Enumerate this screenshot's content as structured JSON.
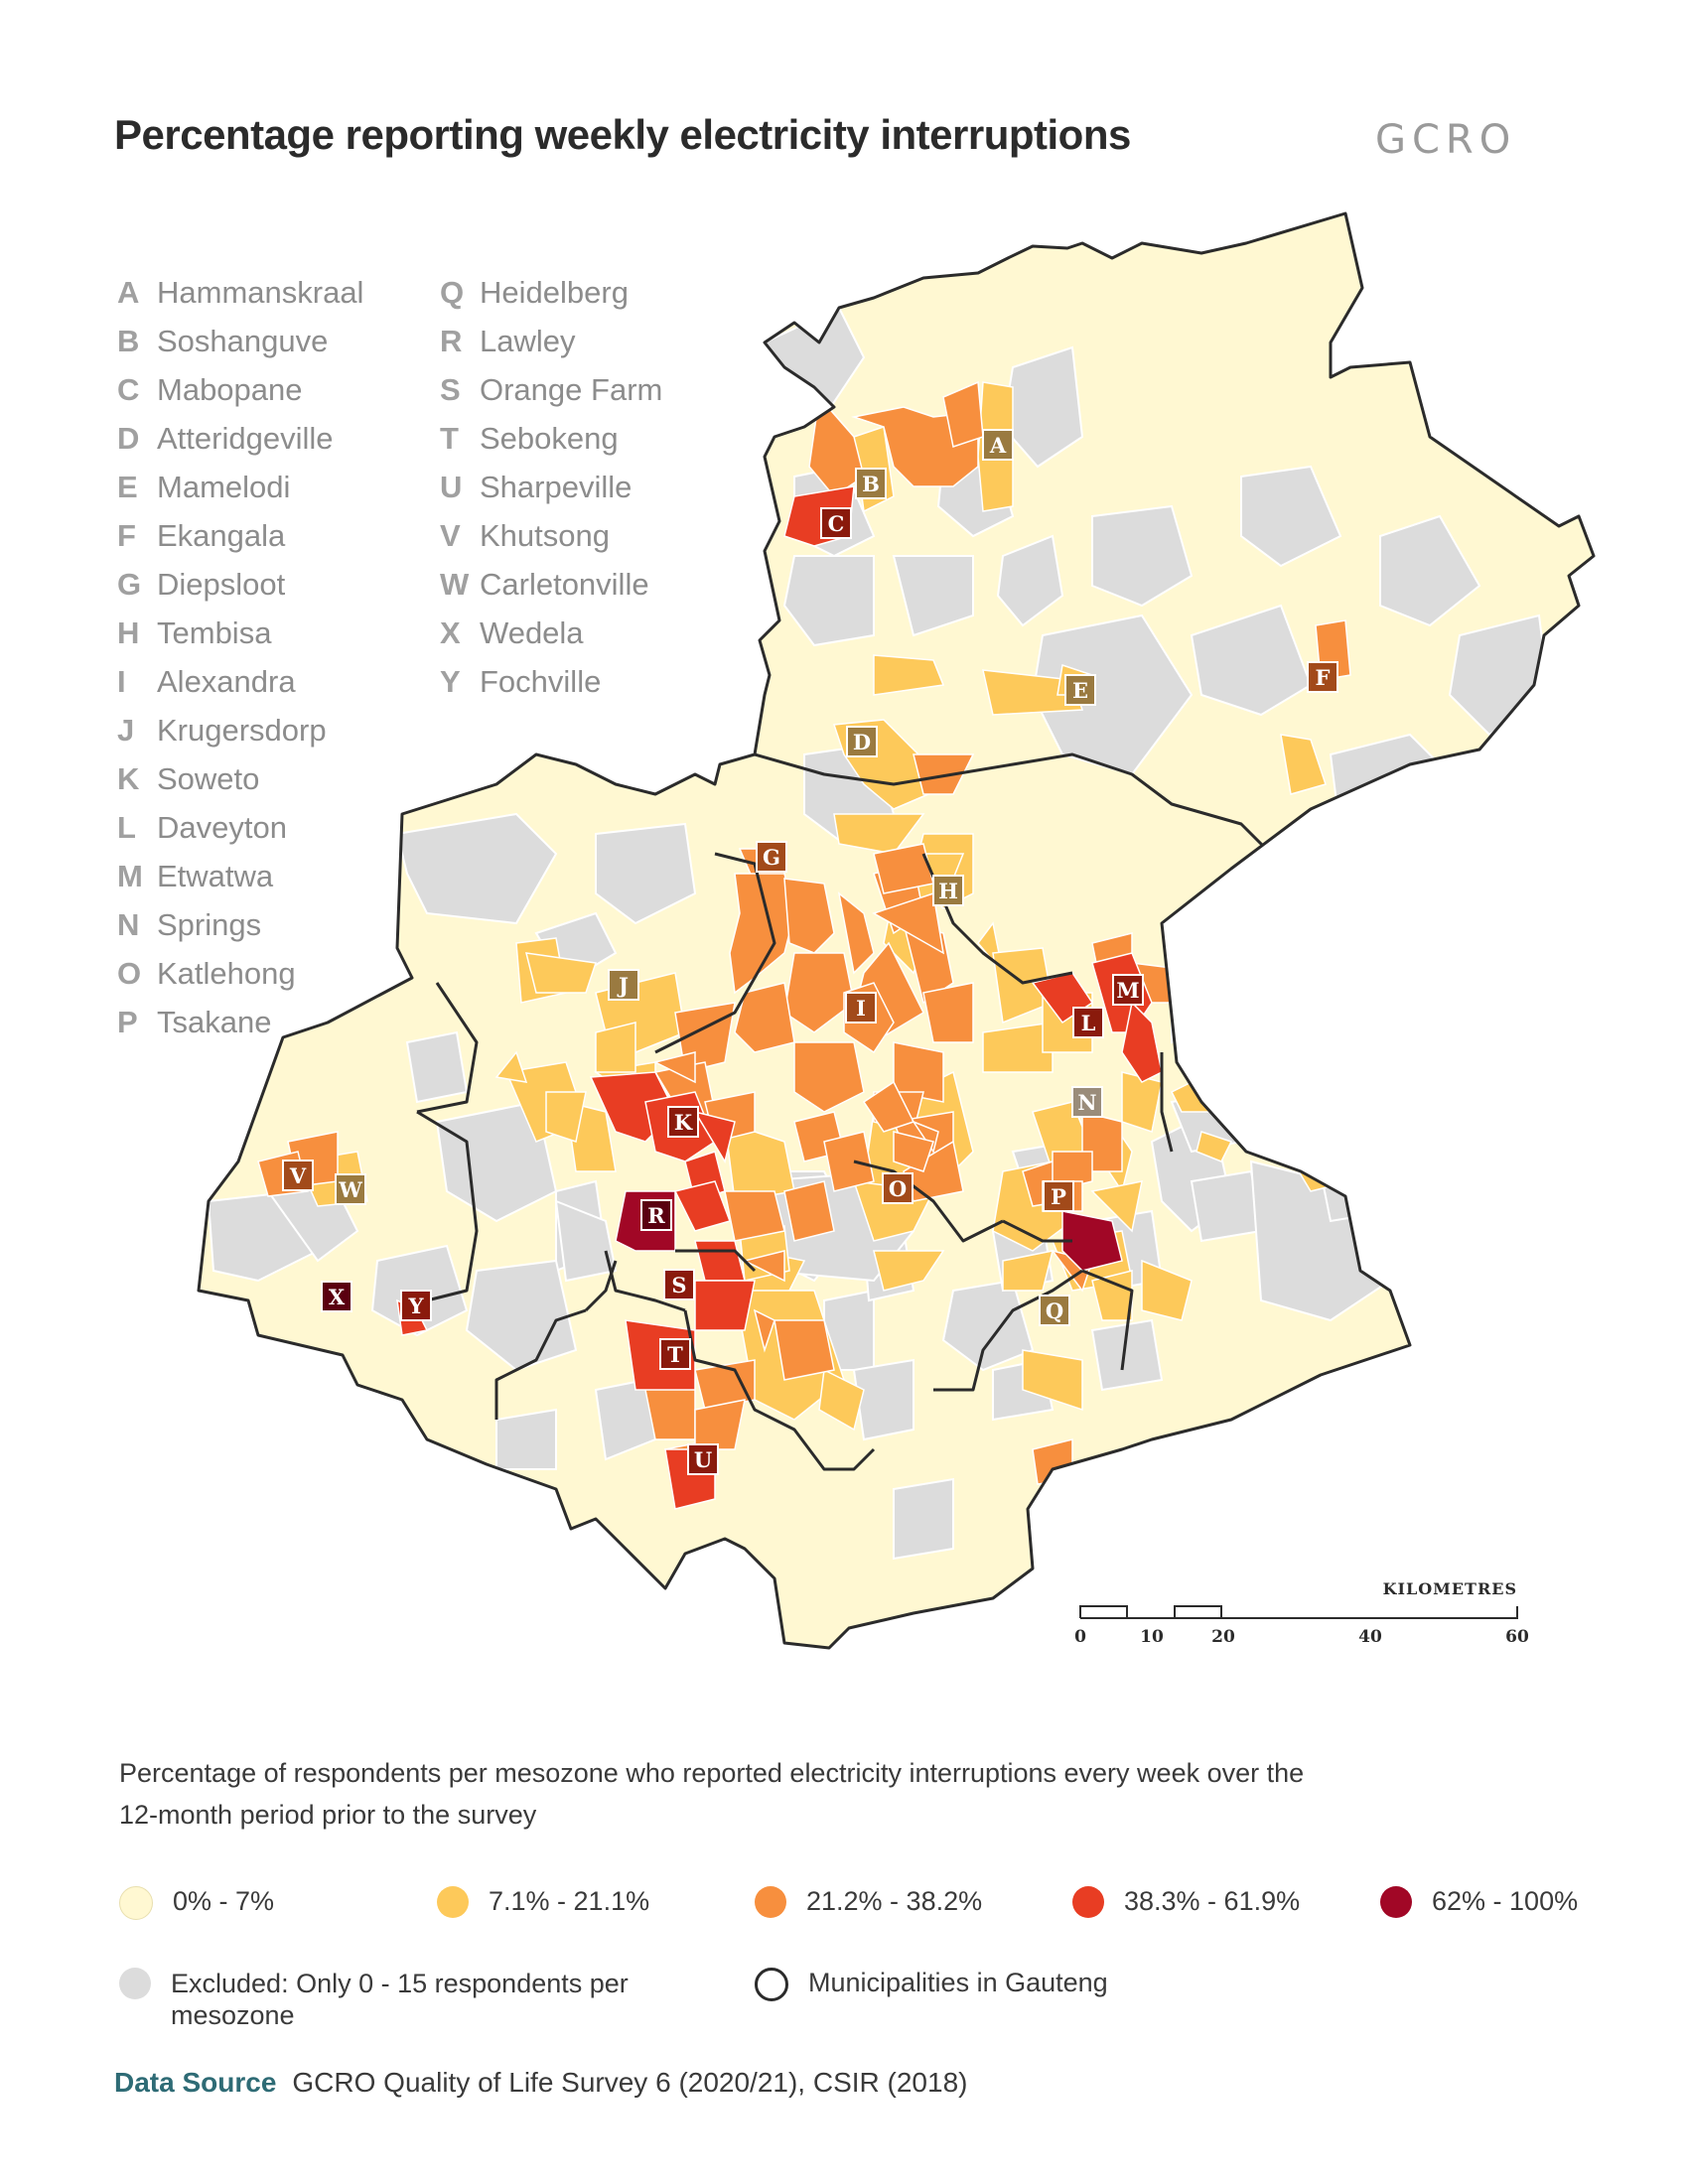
{
  "title": "Percentage reporting weekly electricity interruptions",
  "logo_text": "GCRO",
  "places_left": [
    {
      "letter": "A",
      "name": "Hammanskraal"
    },
    {
      "letter": "B",
      "name": "Soshanguve"
    },
    {
      "letter": "C",
      "name": "Mabopane"
    },
    {
      "letter": "D",
      "name": "Atteridgeville"
    },
    {
      "letter": "E",
      "name": "Mamelodi"
    },
    {
      "letter": "F",
      "name": "Ekangala"
    },
    {
      "letter": "G",
      "name": "Diepsloot"
    },
    {
      "letter": "H",
      "name": "Tembisa"
    },
    {
      "letter": "I",
      "name": "Alexandra"
    },
    {
      "letter": "J",
      "name": "Krugersdorp"
    },
    {
      "letter": "K",
      "name": "Soweto"
    },
    {
      "letter": "L",
      "name": "Daveyton"
    },
    {
      "letter": "M",
      "name": "Etwatwa"
    },
    {
      "letter": "N",
      "name": "Springs"
    },
    {
      "letter": "O",
      "name": "Katlehong"
    },
    {
      "letter": "P",
      "name": "Tsakane"
    }
  ],
  "places_right": [
    {
      "letter": "Q",
      "name": "Heidelberg"
    },
    {
      "letter": "R",
      "name": "Lawley"
    },
    {
      "letter": "S",
      "name": "Orange Farm"
    },
    {
      "letter": "T",
      "name": "Sebokeng"
    },
    {
      "letter": "U",
      "name": "Sharpeville"
    },
    {
      "letter": "V",
      "name": "Khutsong"
    },
    {
      "letter": "W",
      "name": "Carletonville"
    },
    {
      "letter": "X",
      "name": "Wedela"
    },
    {
      "letter": "Y",
      "name": "Fochville"
    }
  ],
  "scale": {
    "label": "KILOMETRES",
    "ticks": [
      "0",
      "10",
      "20",
      "40",
      "60"
    ]
  },
  "legend": {
    "description": "Percentage of respondents per mesozone who reported electricity interruptions every week over the 12-month period prior to the survey",
    "classes": [
      {
        "label": "0% - 7%",
        "color": "#fff8d2"
      },
      {
        "label": "7.1% - 21.1%",
        "color": "#fdc95a"
      },
      {
        "label": "21.2% - 38.2%",
        "color": "#f78f3e"
      },
      {
        "label": "38.3% - 61.9%",
        "color": "#e83d23"
      },
      {
        "label": "62% - 100%",
        "color": "#a10726"
      }
    ],
    "excluded": {
      "label": "Excluded: Only 0 - 15 respondents per mesozone",
      "color": "#dcdcdc"
    },
    "municipalities": {
      "label": "Municipalities in Gauteng"
    }
  },
  "source": {
    "label": "Data Source",
    "text": "GCRO Quality of Life Survey 6 (2020/21), CSIR (2018)"
  },
  "map_markers": [
    {
      "letter": "A",
      "category": 2
    },
    {
      "letter": "B",
      "category": 2
    },
    {
      "letter": "C",
      "category": 4
    },
    {
      "letter": "D",
      "category": 2
    },
    {
      "letter": "E",
      "category": 2
    },
    {
      "letter": "F",
      "category": 3
    },
    {
      "letter": "G",
      "category": 3
    },
    {
      "letter": "H",
      "category": 2
    },
    {
      "letter": "I",
      "category": 3
    },
    {
      "letter": "J",
      "category": 2
    },
    {
      "letter": "K",
      "category": 4
    },
    {
      "letter": "L",
      "category": 4
    },
    {
      "letter": "M",
      "category": 4
    },
    {
      "letter": "N",
      "category": 1
    },
    {
      "letter": "O",
      "category": 3
    },
    {
      "letter": "P",
      "category": 3
    },
    {
      "letter": "Q",
      "category": 2
    },
    {
      "letter": "R",
      "category": 5
    },
    {
      "letter": "S",
      "category": 4
    },
    {
      "letter": "T",
      "category": 4
    },
    {
      "letter": "U",
      "category": 4
    },
    {
      "letter": "V",
      "category": 3
    },
    {
      "letter": "W",
      "category": 2
    },
    {
      "letter": "X",
      "category": 5
    },
    {
      "letter": "Y",
      "category": 4
    }
  ]
}
